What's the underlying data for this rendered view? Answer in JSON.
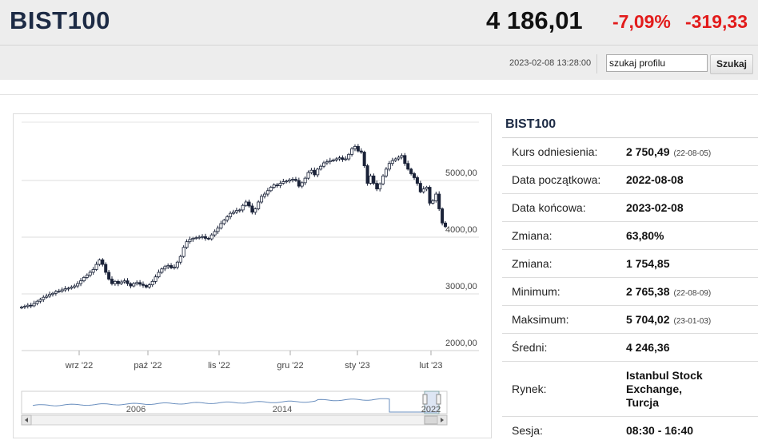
{
  "header": {
    "symbol": "BIST100",
    "price": "4 186,01",
    "change_pct": "-7,09%",
    "change_abs": "-319,33",
    "timestamp": "2023-02-08 13:28:00",
    "search_value": "szukaj profilu",
    "search_button": "Szukaj"
  },
  "colors": {
    "negative": "#e21b1b",
    "brand": "#1d2b45",
    "candle": "#1a2238"
  },
  "info": {
    "title": "BIST100",
    "rows": [
      {
        "label": "Kurs odniesienia:",
        "value": "2 750,49",
        "note": "(22-08-05)"
      },
      {
        "label": "Data początkowa:",
        "value": "2022-08-08",
        "note": ""
      },
      {
        "label": "Data końcowa:",
        "value": "2023-02-08",
        "note": ""
      },
      {
        "label": "Zmiana:",
        "value": "63,80%",
        "note": ""
      },
      {
        "label": "Zmiana:",
        "value": "1 754,85",
        "note": ""
      },
      {
        "label": "Minimum:",
        "value": "2 765,38",
        "note": "(22-08-09)"
      },
      {
        "label": "Maksimum:",
        "value": "5 704,02",
        "note": "(23-01-03)"
      },
      {
        "label": "Średni:",
        "value": "4 246,36",
        "note": ""
      },
      {
        "label": "Rynek:",
        "value": "Istanbul Stock Exchange, Turcja",
        "note": ""
      },
      {
        "label": "Sesja:",
        "value": "08:30 - 16:40",
        "note": ""
      }
    ]
  },
  "chart_data": {
    "type": "candlestick",
    "title": "",
    "xlabel": "",
    "ylabel": "",
    "ylim": [
      2000,
      5800
    ],
    "y_ticks": [
      "5000,00",
      "4000,00",
      "3000,00",
      "2000,00"
    ],
    "x_ticks": [
      "wrz '22",
      "paź '22",
      "lis '22",
      "gru '22",
      "sty '23",
      "lut '23"
    ],
    "closes": [
      2765,
      2780,
      2800,
      2790,
      2830,
      2870,
      2900,
      2940,
      2960,
      2990,
      3010,
      3040,
      3050,
      3070,
      3090,
      3100,
      3120,
      3140,
      3180,
      3230,
      3290,
      3330,
      3380,
      3430,
      3520,
      3600,
      3520,
      3380,
      3260,
      3180,
      3220,
      3180,
      3210,
      3230,
      3180,
      3140,
      3180,
      3200,
      3170,
      3150,
      3120,
      3160,
      3220,
      3300,
      3380,
      3440,
      3480,
      3500,
      3460,
      3470,
      3560,
      3660,
      3820,
      3920,
      3960,
      3980,
      3990,
      4000,
      4010,
      3980,
      3970,
      4040,
      4100,
      4160,
      4240,
      4300,
      4360,
      4420,
      4440,
      4470,
      4480,
      4560,
      4620,
      4550,
      4440,
      4500,
      4620,
      4720,
      4760,
      4820,
      4880,
      4920,
      4910,
      4950,
      4980,
      4990,
      5010,
      5020,
      5000,
      4900,
      4960,
      5040,
      5140,
      5180,
      5100,
      5200,
      5250,
      5310,
      5330,
      5350,
      5360,
      5380,
      5400,
      5370,
      5380,
      5460,
      5560,
      5600,
      5520,
      5500,
      5260,
      4950,
      5080,
      4950,
      4850,
      4940,
      5080,
      5200,
      5300,
      5350,
      5380,
      5410,
      5440,
      5300,
      5200,
      5120,
      5050,
      4950,
      4800,
      4850,
      4880,
      4600,
      4640,
      4760,
      4500,
      4250,
      4186
    ],
    "navigator": {
      "year_labels": [
        "2006",
        "2014",
        "2022"
      ]
    }
  }
}
